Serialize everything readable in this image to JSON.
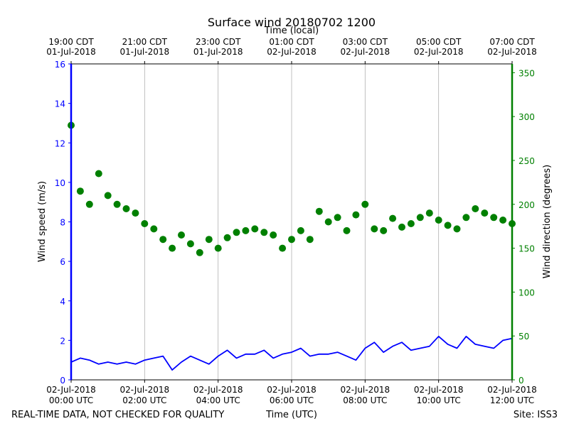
{
  "chart_data": {
    "type": "line+scatter",
    "title": "Surface wind 20180702 1200",
    "top_axis_label": "Time (local)",
    "bottom_axis_label": "Time (UTC)",
    "footer_left": "REAL-TIME DATA, NOT CHECKED FOR QUALITY",
    "footer_right": "Site: ISS3",
    "x_range_hours": [
      0,
      12
    ],
    "top_ticks": [
      {
        "h": 0,
        "line1": "19:00 CDT",
        "line2": "01-Jul-2018"
      },
      {
        "h": 2,
        "line1": "21:00 CDT",
        "line2": "01-Jul-2018"
      },
      {
        "h": 4,
        "line1": "23:00 CDT",
        "line2": "01-Jul-2018"
      },
      {
        "h": 6,
        "line1": "01:00 CDT",
        "line2": "02-Jul-2018"
      },
      {
        "h": 8,
        "line1": "03:00 CDT",
        "line2": "02-Jul-2018"
      },
      {
        "h": 10,
        "line1": "05:00 CDT",
        "line2": "02-Jul-2018"
      },
      {
        "h": 12,
        "line1": "07:00 CDT",
        "line2": "02-Jul-2018"
      }
    ],
    "bottom_ticks": [
      {
        "h": 0,
        "line1": "02-Jul-2018",
        "line2": "00:00 UTC"
      },
      {
        "h": 2,
        "line1": "02-Jul-2018",
        "line2": "02:00 UTC"
      },
      {
        "h": 4,
        "line1": "02-Jul-2018",
        "line2": "04:00 UTC"
      },
      {
        "h": 6,
        "line1": "02-Jul-2018",
        "line2": "06:00 UTC"
      },
      {
        "h": 8,
        "line1": "02-Jul-2018",
        "line2": "08:00 UTC"
      },
      {
        "h": 10,
        "line1": "02-Jul-2018",
        "line2": "10:00 UTC"
      },
      {
        "h": 12,
        "line1": "02-Jul-2018",
        "line2": "12:00 UTC"
      }
    ],
    "left_axis": {
      "label": "Wind speed (m/s)",
      "range": [
        0,
        16
      ],
      "ticks": [
        0,
        2,
        4,
        6,
        8,
        10,
        12,
        14,
        16
      ],
      "color": "#0000ff"
    },
    "right_axis": {
      "label": "Wind direction (degrees)",
      "range": [
        0,
        360
      ],
      "ticks": [
        0,
        50,
        100,
        150,
        200,
        250,
        300,
        350
      ],
      "color": "#008000"
    },
    "series": [
      {
        "name": "Wind speed",
        "axis": "left",
        "style": "line",
        "color": "#0000ff",
        "x": [
          0.0,
          0.25,
          0.5,
          0.75,
          1.0,
          1.25,
          1.5,
          1.75,
          2.0,
          2.25,
          2.5,
          2.75,
          3.0,
          3.25,
          3.5,
          3.75,
          4.0,
          4.25,
          4.5,
          4.75,
          5.0,
          5.25,
          5.5,
          5.75,
          6.0,
          6.25,
          6.5,
          6.75,
          7.0,
          7.25,
          7.5,
          7.75,
          8.0,
          8.25,
          8.5,
          8.75,
          9.0,
          9.25,
          9.5,
          9.75,
          10.0,
          10.25,
          10.5,
          10.75,
          11.0,
          11.25,
          11.5,
          11.75,
          12.0
        ],
        "values": [
          0.9,
          1.1,
          1.0,
          0.8,
          0.9,
          0.8,
          0.9,
          0.8,
          1.0,
          1.1,
          1.2,
          0.5,
          0.9,
          1.2,
          1.0,
          0.8,
          1.2,
          1.5,
          1.1,
          1.3,
          1.3,
          1.5,
          1.1,
          1.3,
          1.4,
          1.6,
          1.2,
          1.3,
          1.3,
          1.4,
          1.2,
          1.0,
          1.6,
          1.9,
          1.4,
          1.7,
          1.9,
          1.5,
          1.6,
          1.7,
          2.2,
          1.8,
          1.6,
          2.2,
          1.8,
          1.7,
          1.6,
          2.0,
          2.1
        ]
      },
      {
        "name": "Wind direction",
        "axis": "right",
        "style": "scatter",
        "color": "#008000",
        "x": [
          0.0,
          0.25,
          0.5,
          0.75,
          1.0,
          1.25,
          1.5,
          1.75,
          2.0,
          2.25,
          2.5,
          2.75,
          3.0,
          3.25,
          3.5,
          3.75,
          4.0,
          4.25,
          4.5,
          4.75,
          5.0,
          5.25,
          5.5,
          5.75,
          6.0,
          6.25,
          6.5,
          6.75,
          7.0,
          7.25,
          7.5,
          7.75,
          8.0,
          8.25,
          8.5,
          8.75,
          9.0,
          9.25,
          9.5,
          9.75,
          10.0,
          10.25,
          10.5,
          10.75,
          11.0,
          11.25,
          11.5,
          11.75,
          12.0
        ],
        "values": [
          290,
          215,
          200,
          235,
          210,
          200,
          195,
          190,
          178,
          172,
          160,
          150,
          165,
          155,
          145,
          160,
          150,
          162,
          168,
          170,
          172,
          168,
          165,
          150,
          160,
          170,
          160,
          192,
          180,
          185,
          170,
          188,
          200,
          172,
          170,
          184,
          174,
          178,
          185,
          190,
          182,
          176,
          172,
          185,
          195,
          190,
          185,
          182,
          178
        ]
      }
    ]
  }
}
